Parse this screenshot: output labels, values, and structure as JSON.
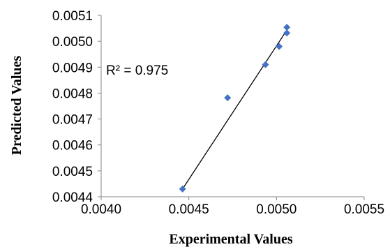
{
  "chart_data": {
    "type": "scatter",
    "xlabel": "Experimental Values",
    "ylabel": "Predicted Values",
    "xlim": [
      0.004,
      0.0055
    ],
    "ylim": [
      0.0044,
      0.0051
    ],
    "x_ticks": [
      "0.0040",
      "0.0045",
      "0.0050",
      "0.0055"
    ],
    "y_ticks": [
      "0.0044",
      "0.0045",
      "0.0046",
      "0.0047",
      "0.0048",
      "0.0049",
      "0.0050",
      "0.0051"
    ],
    "grid": false,
    "series": [
      {
        "marker": "diamond",
        "color": "#4472C4",
        "points": [
          {
            "x": 0.004464,
            "y": 0.00443
          },
          {
            "x": 0.004721,
            "y": 0.004782
          },
          {
            "x": 0.004937,
            "y": 0.00491
          },
          {
            "x": 0.005015,
            "y": 0.00498
          },
          {
            "x": 0.005059,
            "y": 0.005032
          },
          {
            "x": 0.005059,
            "y": 0.005054
          }
        ]
      }
    ],
    "trendline": {
      "type": "linear",
      "color": "#000000",
      "from": {
        "x": 0.004464,
        "y": 0.00443
      },
      "to": {
        "x": 0.005059,
        "y": 0.005043
      }
    },
    "annotation": "R² = 0.975"
  }
}
